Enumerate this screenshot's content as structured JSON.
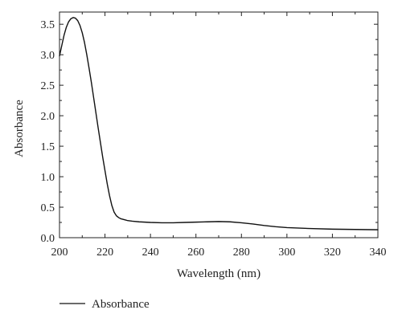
{
  "chart_data": {
    "type": "line",
    "title": "",
    "xlabel": "Wavelength (nm)",
    "ylabel": "Absorbance",
    "xlim": [
      200,
      340
    ],
    "ylim": [
      0,
      3.7
    ],
    "xticks": [
      200,
      220,
      240,
      260,
      280,
      300,
      320,
      340
    ],
    "xtick_labels": [
      "200",
      "220",
      "240",
      "260",
      "280",
      "300",
      "320",
      "340"
    ],
    "yticks": [
      0.0,
      0.5,
      1.0,
      1.5,
      2.0,
      2.5,
      3.0,
      3.5
    ],
    "ytick_labels": [
      "0.0",
      "0.5",
      "1.0",
      "1.5",
      "2.0",
      "2.5",
      "3.0",
      "3.5"
    ],
    "grid": false,
    "legend_position": "bottom-left",
    "colors": {
      "line": "#111111",
      "axis": "#222222"
    },
    "series": [
      {
        "name": "Absorbance",
        "x": [
          200,
          201,
          202,
          203,
          204,
          205,
          206,
          207,
          208,
          209,
          210,
          211,
          212,
          213,
          214,
          215,
          216,
          217,
          218,
          219,
          220,
          221,
          222,
          223,
          224,
          225,
          226,
          227,
          228,
          229,
          230,
          232,
          235,
          240,
          245,
          250,
          255,
          260,
          265,
          270,
          275,
          280,
          285,
          290,
          295,
          300,
          310,
          320,
          330,
          340
        ],
        "y": [
          2.98,
          3.15,
          3.32,
          3.45,
          3.54,
          3.59,
          3.61,
          3.6,
          3.56,
          3.48,
          3.36,
          3.2,
          3.0,
          2.78,
          2.55,
          2.3,
          2.05,
          1.8,
          1.56,
          1.32,
          1.1,
          0.88,
          0.69,
          0.53,
          0.42,
          0.36,
          0.33,
          0.31,
          0.3,
          0.29,
          0.28,
          0.27,
          0.26,
          0.25,
          0.245,
          0.245,
          0.25,
          0.255,
          0.26,
          0.265,
          0.26,
          0.245,
          0.225,
          0.2,
          0.18,
          0.165,
          0.15,
          0.14,
          0.135,
          0.13
        ]
      }
    ]
  }
}
